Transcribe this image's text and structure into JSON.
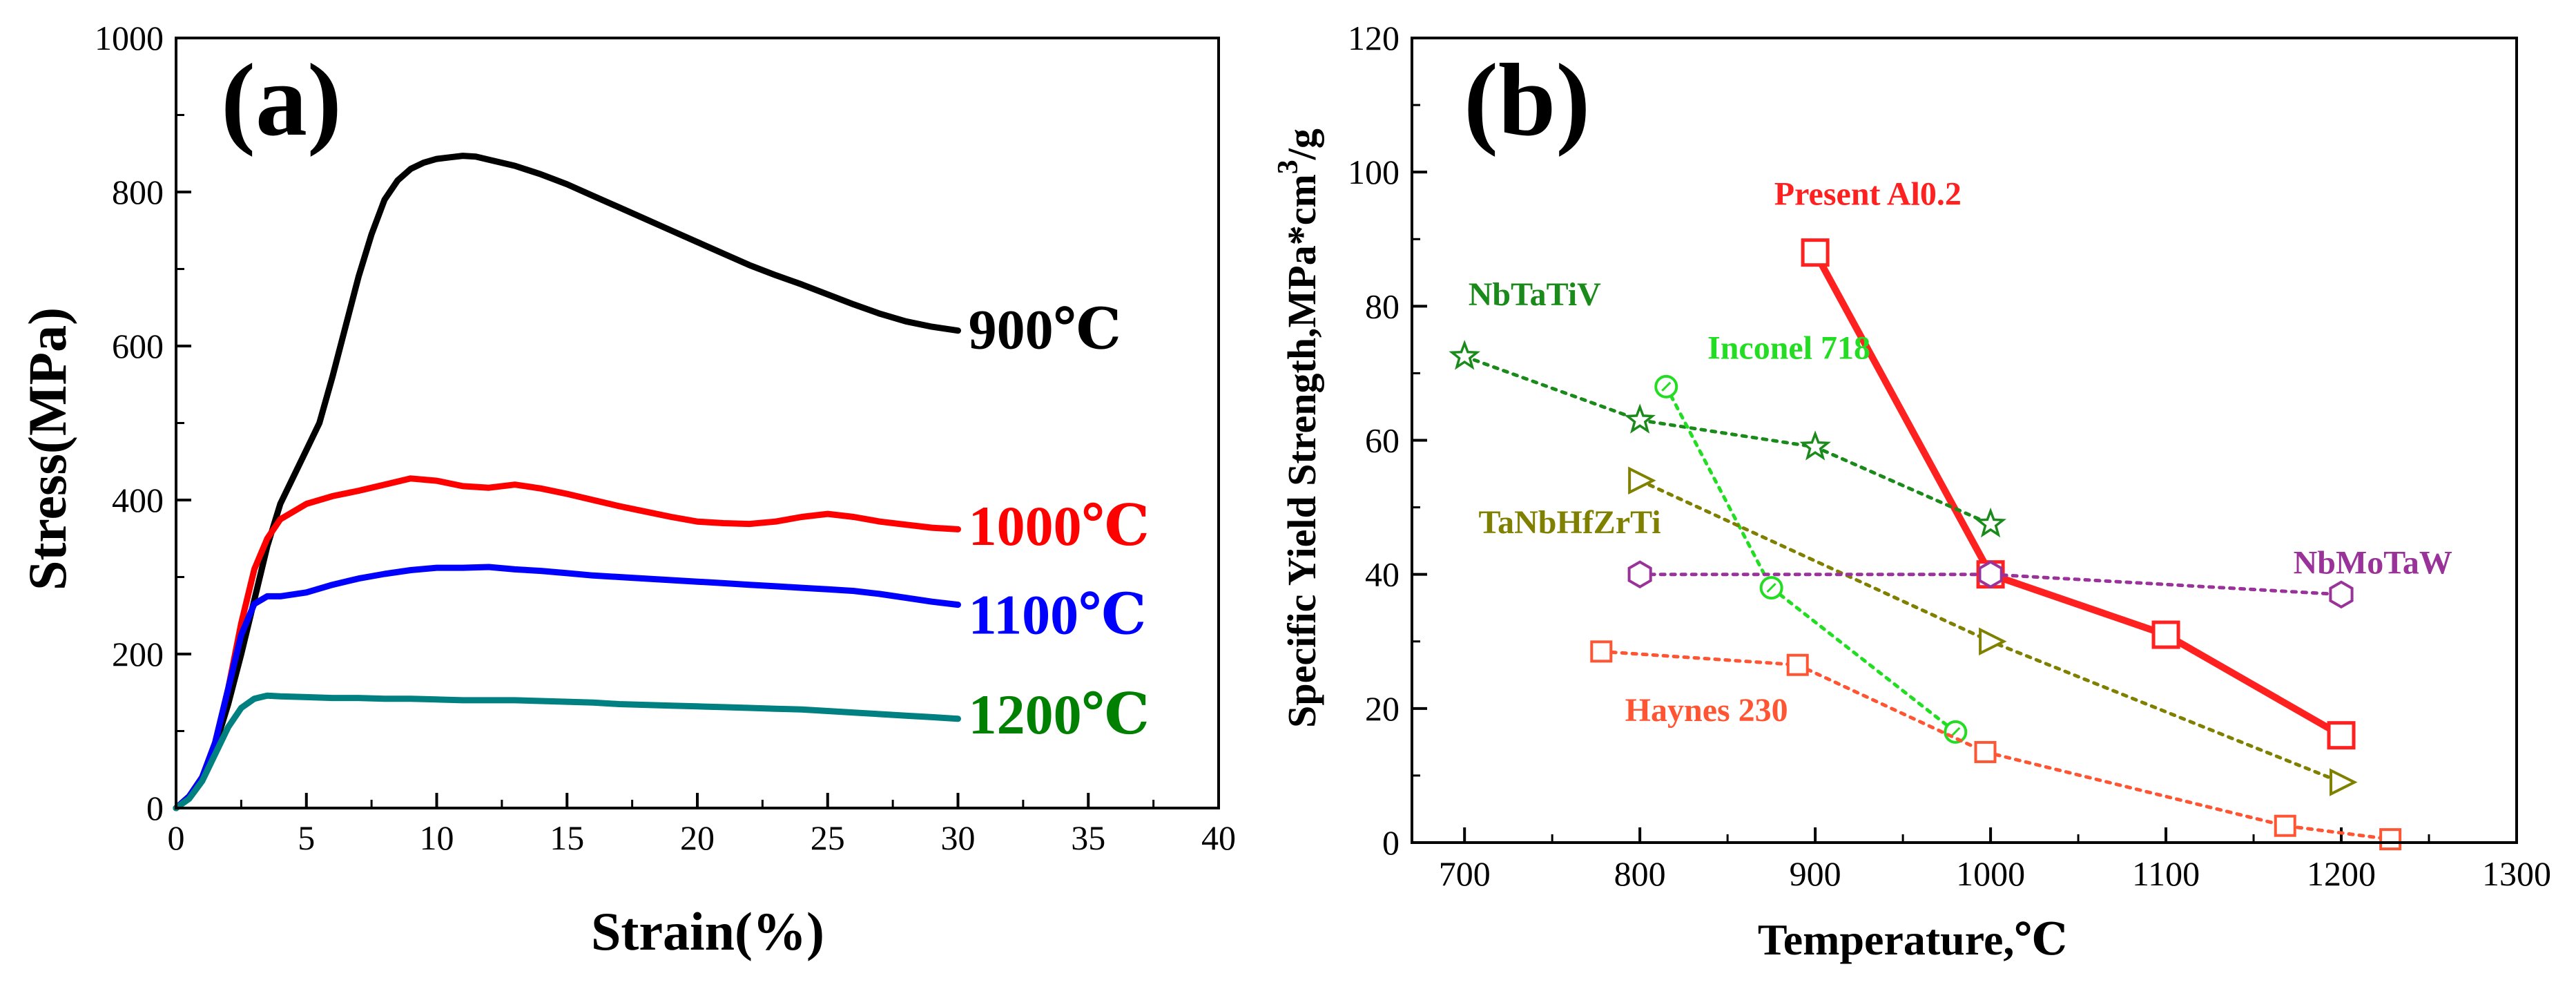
{
  "chart_data": [
    {
      "panel": "a",
      "type": "line",
      "panel_label": "(a)",
      "xlabel": "Strain(%)",
      "ylabel": "Stress(MPa)",
      "xlim": [
        0,
        40
      ],
      "ylim": [
        0,
        1000
      ],
      "x_ticks": [
        0,
        5,
        10,
        15,
        20,
        25,
        30,
        35,
        40
      ],
      "y_ticks": [
        0,
        200,
        400,
        600,
        800,
        1000
      ],
      "series": [
        {
          "name": "900℃",
          "color": "#000000",
          "points": [
            [
              0,
              0
            ],
            [
              0.5,
              15
            ],
            [
              1,
              40
            ],
            [
              1.5,
              80
            ],
            [
              2,
              135
            ],
            [
              2.5,
              200
            ],
            [
              3,
              270
            ],
            [
              3.5,
              340
            ],
            [
              4,
              395
            ],
            [
              4.5,
              430
            ],
            [
              5,
              465
            ],
            [
              5.5,
              500
            ],
            [
              6,
              560
            ],
            [
              6.5,
              625
            ],
            [
              7,
              690
            ],
            [
              7.5,
              745
            ],
            [
              8,
              790
            ],
            [
              8.5,
              815
            ],
            [
              9,
              830
            ],
            [
              9.5,
              838
            ],
            [
              10,
              843
            ],
            [
              10.5,
              845
            ],
            [
              11,
              847
            ],
            [
              11.5,
              846
            ],
            [
              12,
              842
            ],
            [
              13,
              834
            ],
            [
              14,
              823
            ],
            [
              15,
              810
            ],
            [
              16,
              795
            ],
            [
              17,
              780
            ],
            [
              18,
              765
            ],
            [
              19,
              750
            ],
            [
              20,
              735
            ],
            [
              21,
              720
            ],
            [
              22,
              705
            ],
            [
              23,
              692
            ],
            [
              24,
              680
            ],
            [
              25,
              667
            ],
            [
              26,
              654
            ],
            [
              27,
              642
            ],
            [
              28,
              632
            ],
            [
              29,
              625
            ],
            [
              30,
              620
            ]
          ]
        },
        {
          "name": "1000℃",
          "color": "#ff0000",
          "points": [
            [
              0,
              0
            ],
            [
              0.5,
              15
            ],
            [
              1,
              40
            ],
            [
              1.5,
              85
            ],
            [
              2,
              155
            ],
            [
              2.5,
              240
            ],
            [
              3,
              310
            ],
            [
              3.5,
              350
            ],
            [
              4,
              375
            ],
            [
              5,
              395
            ],
            [
              6,
              405
            ],
            [
              7,
              412
            ],
            [
              8,
              420
            ],
            [
              9,
              428
            ],
            [
              10,
              425
            ],
            [
              11,
              418
            ],
            [
              12,
              416
            ],
            [
              13,
              420
            ],
            [
              14,
              415
            ],
            [
              15,
              408
            ],
            [
              16,
              400
            ],
            [
              17,
              392
            ],
            [
              18,
              385
            ],
            [
              19,
              378
            ],
            [
              20,
              372
            ],
            [
              21,
              370
            ],
            [
              22,
              369
            ],
            [
              23,
              372
            ],
            [
              24,
              378
            ],
            [
              25,
              382
            ],
            [
              26,
              378
            ],
            [
              27,
              372
            ],
            [
              28,
              368
            ],
            [
              29,
              364
            ],
            [
              30,
              362
            ]
          ]
        },
        {
          "name": "1100℃",
          "color": "#0000ff",
          "points": [
            [
              0,
              0
            ],
            [
              0.5,
              15
            ],
            [
              1,
              40
            ],
            [
              1.5,
              85
            ],
            [
              2,
              155
            ],
            [
              2.5,
              225
            ],
            [
              3,
              265
            ],
            [
              3.5,
              275
            ],
            [
              4,
              275
            ],
            [
              5,
              280
            ],
            [
              6,
              290
            ],
            [
              7,
              298
            ],
            [
              8,
              304
            ],
            [
              9,
              309
            ],
            [
              10,
              312
            ],
            [
              11,
              312
            ],
            [
              12,
              313
            ],
            [
              13,
              310
            ],
            [
              14,
              308
            ],
            [
              15,
              305
            ],
            [
              16,
              302
            ],
            [
              17,
              300
            ],
            [
              18,
              298
            ],
            [
              19,
              296
            ],
            [
              20,
              294
            ],
            [
              21,
              292
            ],
            [
              22,
              290
            ],
            [
              23,
              288
            ],
            [
              24,
              286
            ],
            [
              25,
              284
            ],
            [
              26,
              282
            ],
            [
              27,
              278
            ],
            [
              28,
              273
            ],
            [
              29,
              268
            ],
            [
              30,
              264
            ]
          ]
        },
        {
          "name": "1200℃",
          "color": "#008080",
          "points": [
            [
              0,
              0
            ],
            [
              0.5,
              12
            ],
            [
              1,
              35
            ],
            [
              1.5,
              70
            ],
            [
              2,
              105
            ],
            [
              2.5,
              130
            ],
            [
              3,
              142
            ],
            [
              3.5,
              146
            ],
            [
              4,
              145
            ],
            [
              5,
              144
            ],
            [
              6,
              143
            ],
            [
              7,
              143
            ],
            [
              8,
              142
            ],
            [
              9,
              142
            ],
            [
              10,
              141
            ],
            [
              11,
              140
            ],
            [
              12,
              140
            ],
            [
              13,
              140
            ],
            [
              14,
              139
            ],
            [
              15,
              138
            ],
            [
              16,
              137
            ],
            [
              17,
              135
            ],
            [
              18,
              134
            ],
            [
              19,
              133
            ],
            [
              20,
              132
            ],
            [
              21,
              131
            ],
            [
              22,
              130
            ],
            [
              23,
              129
            ],
            [
              24,
              128
            ],
            [
              25,
              126
            ],
            [
              26,
              124
            ],
            [
              27,
              122
            ],
            [
              28,
              120
            ],
            [
              29,
              118
            ],
            [
              30,
              116
            ]
          ]
        }
      ],
      "curve_labels": [
        {
          "text": "900℃",
          "color": "#000000",
          "x": 30.4,
          "y": 620
        },
        {
          "text": "1000℃",
          "color": "#ff0000",
          "x": 30.4,
          "y": 365
        },
        {
          "text": "1100℃",
          "color": "#0000ff",
          "x": 30.4,
          "y": 250
        },
        {
          "text": "1200℃",
          "color": "#008000",
          "x": 30.4,
          "y": 120
        }
      ]
    },
    {
      "panel": "b",
      "type": "scatter",
      "panel_label": "(b)",
      "xlabel": "Temperature,℃",
      "ylabel": "Specific Yield Strength,MPa*cm³/g",
      "ylabel_parts": {
        "main": "Specific Yield Strength,MPa*cm",
        "sup": "3",
        "tail": "/g"
      },
      "xlim": [
        670,
        1300
      ],
      "ylim": [
        0,
        120
      ],
      "x_ticks": [
        700,
        800,
        900,
        1000,
        1100,
        1200,
        1300
      ],
      "y_ticks": [
        0,
        20,
        40,
        60,
        80,
        100,
        120
      ],
      "series": [
        {
          "name": "Present Al0.2",
          "color": "#ff2020",
          "marker": "square",
          "line": "solid",
          "x": [
            900,
            1000,
            1100,
            1200
          ],
          "y": [
            88,
            40,
            31,
            16
          ],
          "label_pos": {
            "x": 930,
            "y": 97
          }
        },
        {
          "name": "NbTaTiV",
          "color": "#1a8a1a",
          "marker": "star",
          "line": "dotted",
          "x": [
            700,
            800,
            900,
            1000
          ],
          "y": [
            72.5,
            63,
            59,
            47.5
          ],
          "label_pos": {
            "x": 740,
            "y": 82
          }
        },
        {
          "name": "Inconel 718",
          "color": "#22dd22",
          "marker": "circle",
          "line": "dotted",
          "x": [
            815,
            875,
            980
          ],
          "y": [
            68,
            38,
            16.5
          ],
          "label_pos": {
            "x": 885,
            "y": 74
          }
        },
        {
          "name": "TaNbHfZrTi",
          "color": "#808000",
          "marker": "triangle-right",
          "line": "dotted",
          "x": [
            800,
            1000,
            1200
          ],
          "y": [
            54,
            30,
            9
          ],
          "label_pos": {
            "x": 760,
            "y": 48
          }
        },
        {
          "name": "NbMoTaW",
          "color": "#993399",
          "marker": "hexagon",
          "line": "dotted",
          "x": [
            800,
            1000,
            1200
          ],
          "y": [
            40,
            40,
            37
          ],
          "label_pos": {
            "x": 1218,
            "y": 42
          }
        },
        {
          "name": "Haynes 230",
          "color": "#ff5533",
          "marker": "square-small",
          "line": "dotted",
          "x": [
            778,
            890,
            997,
            1168,
            1228
          ],
          "y": [
            28.5,
            26.5,
            13.5,
            2.5,
            0.5
          ],
          "label_pos": {
            "x": 838,
            "y": 20
          }
        }
      ]
    }
  ]
}
